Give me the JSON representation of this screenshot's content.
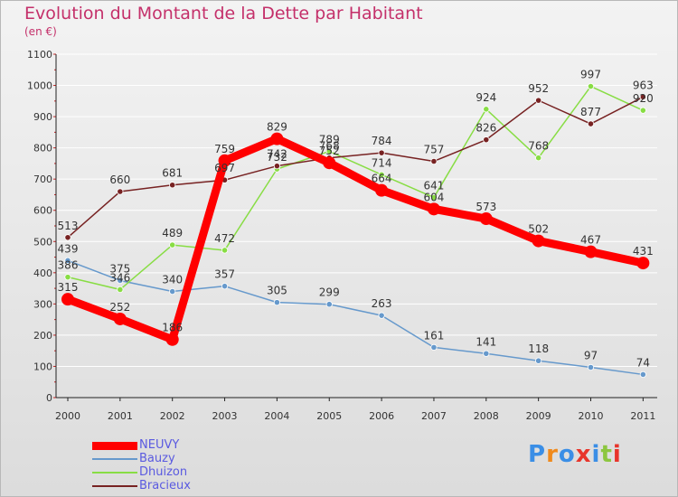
{
  "header": {
    "title": "Evolution du Montant de la Dette par Habitant",
    "subtitle": "(en €)"
  },
  "logo": {
    "text": "Proxiti",
    "colors": [
      "#3a8ee6",
      "#f08a1c",
      "#3a8ee6",
      "#e8352b",
      "#3a8ee6",
      "#8cc63f",
      "#e8352b"
    ]
  },
  "chart_data": {
    "type": "line",
    "title": "Evolution du Montant de la Dette par Habitant",
    "subtitle": "(en €)",
    "xlabel": "",
    "ylabel": "",
    "x": [
      "2000",
      "2001",
      "2002",
      "2003",
      "2004",
      "2005",
      "2006",
      "2007",
      "2008",
      "2009",
      "2010",
      "2011"
    ],
    "ylim": [
      0,
      1100
    ],
    "yticks": [
      0,
      100,
      200,
      300,
      400,
      500,
      600,
      700,
      800,
      900,
      1000,
      1100
    ],
    "grid": "horizontal",
    "legend_position": "bottom-left",
    "series": [
      {
        "name": "NEUVY",
        "color": "#ff0000",
        "values": [
          315,
          252,
          186,
          759,
          829,
          752,
          664,
          604,
          573,
          502,
          467,
          431
        ]
      },
      {
        "name": "Bauzy",
        "color": "#6699cc",
        "values": [
          439,
          375,
          340,
          357,
          305,
          299,
          263,
          161,
          141,
          118,
          97,
          74
        ]
      },
      {
        "name": "Dhuizon",
        "color": "#88dd44",
        "values": [
          386,
          346,
          489,
          472,
          732,
          789,
          714,
          641,
          924,
          768,
          997,
          920
        ]
      },
      {
        "name": "Bracieux",
        "color": "#772222",
        "values": [
          513,
          660,
          681,
          697,
          742,
          768,
          784,
          757,
          826,
          952,
          877,
          963
        ]
      }
    ]
  }
}
